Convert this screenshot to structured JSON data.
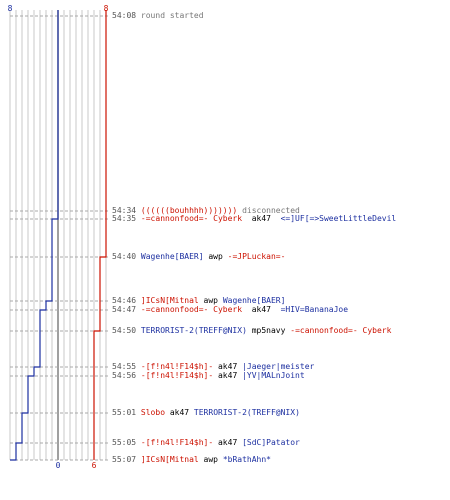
{
  "colors": {
    "team_red": "#cc1100",
    "team_blue": "#1c2fa0",
    "grid": "#c8c8c8",
    "text": "#000000",
    "time": "#555555",
    "meta": "#777777"
  },
  "chart_data": {
    "type": "line",
    "title": "",
    "xlabel": "",
    "ylabel": "",
    "blue_start": "8",
    "red_start": "8",
    "blue_end": "0",
    "red_end": "6",
    "series": [
      {
        "name": "",
        "color": "#1c2fa0",
        "steps": [
          [
            "54:08",
            8
          ],
          [
            "54:35",
            7
          ],
          [
            "54:46",
            6
          ],
          [
            "54:47",
            5
          ],
          [
            "54:55",
            4
          ],
          [
            "54:56",
            3
          ],
          [
            "55:01",
            2
          ],
          [
            "55:05",
            1
          ],
          [
            "55:07",
            0
          ]
        ]
      },
      {
        "name": "",
        "color": "#cc1100",
        "steps": [
          [
            "54:08",
            8
          ],
          [
            "54:40",
            7
          ],
          [
            "54:50",
            6
          ]
        ]
      }
    ]
  },
  "log": [
    {
      "time": "54:08",
      "parts": [
        {
          "text": "round started",
          "cls": "gray"
        }
      ]
    },
    {
      "time": "54:34",
      "parts": [
        {
          "text": "((((((bouhhhh))))))) ",
          "cls": "red"
        },
        {
          "text": "disconnected",
          "cls": "gray"
        }
      ]
    },
    {
      "time": "54:35",
      "parts": [
        {
          "text": "-=cannonfood=- Cyberk",
          "cls": "red"
        },
        {
          "text": "  ak47  ",
          "cls": "blk"
        },
        {
          "text": "<=]UF[=>SweetLittleDevil",
          "cls": "blue"
        }
      ]
    },
    {
      "time": "54:40",
      "parts": [
        {
          "text": "Wagenhe[BAER]",
          "cls": "blue"
        },
        {
          "text": " awp ",
          "cls": "blk"
        },
        {
          "text": "-=JPLuckan=-",
          "cls": "red"
        }
      ]
    },
    {
      "time": "54:46",
      "parts": [
        {
          "text": "]ICsN[Mitnal",
          "cls": "red"
        },
        {
          "text": " awp ",
          "cls": "blk"
        },
        {
          "text": "Wagenhe[BAER]",
          "cls": "blue"
        }
      ]
    },
    {
      "time": "54:47",
      "parts": [
        {
          "text": "-=cannonfood=- Cyberk",
          "cls": "red"
        },
        {
          "text": "  ak47  ",
          "cls": "blk"
        },
        {
          "text": "=HIV=BananaJoe",
          "cls": "blue"
        }
      ]
    },
    {
      "time": "54:50",
      "parts": [
        {
          "text": "TERRORIST-2(TREFF@NIX)",
          "cls": "blue"
        },
        {
          "text": " mp5navy ",
          "cls": "blk"
        },
        {
          "text": "-=cannonfood=- Cyberk",
          "cls": "red"
        }
      ]
    },
    {
      "time": "54:55",
      "parts": [
        {
          "text": "-[f!n4l!F14$h]-",
          "cls": "red"
        },
        {
          "text": " ak47 ",
          "cls": "blk"
        },
        {
          "text": "|Jaeger|meister",
          "cls": "blue"
        }
      ]
    },
    {
      "time": "54:56",
      "parts": [
        {
          "text": "-[f!n4l!F14$h]-",
          "cls": "red"
        },
        {
          "text": " ak47 ",
          "cls": "blk"
        },
        {
          "text": "|YV|MALnJoint",
          "cls": "blue"
        }
      ]
    },
    {
      "time": "55:01",
      "parts": [
        {
          "text": "Slobo",
          "cls": "red"
        },
        {
          "text": " ak47 ",
          "cls": "blk"
        },
        {
          "text": "TERRORIST-2(TREFF@NIX)",
          "cls": "blue"
        }
      ]
    },
    {
      "time": "55:05",
      "parts": [
        {
          "text": "-[f!n4l!F14$h]-",
          "cls": "red"
        },
        {
          "text": " ak47 ",
          "cls": "blk"
        },
        {
          "text": "[SdC]Patator",
          "cls": "blue"
        }
      ]
    },
    {
      "time": "55:07",
      "parts": [
        {
          "text": "]ICsN[Mitnal",
          "cls": "red"
        },
        {
          "text": " awp ",
          "cls": "blk"
        },
        {
          "text": "*bRathAhn*",
          "cls": "blue"
        }
      ]
    }
  ]
}
